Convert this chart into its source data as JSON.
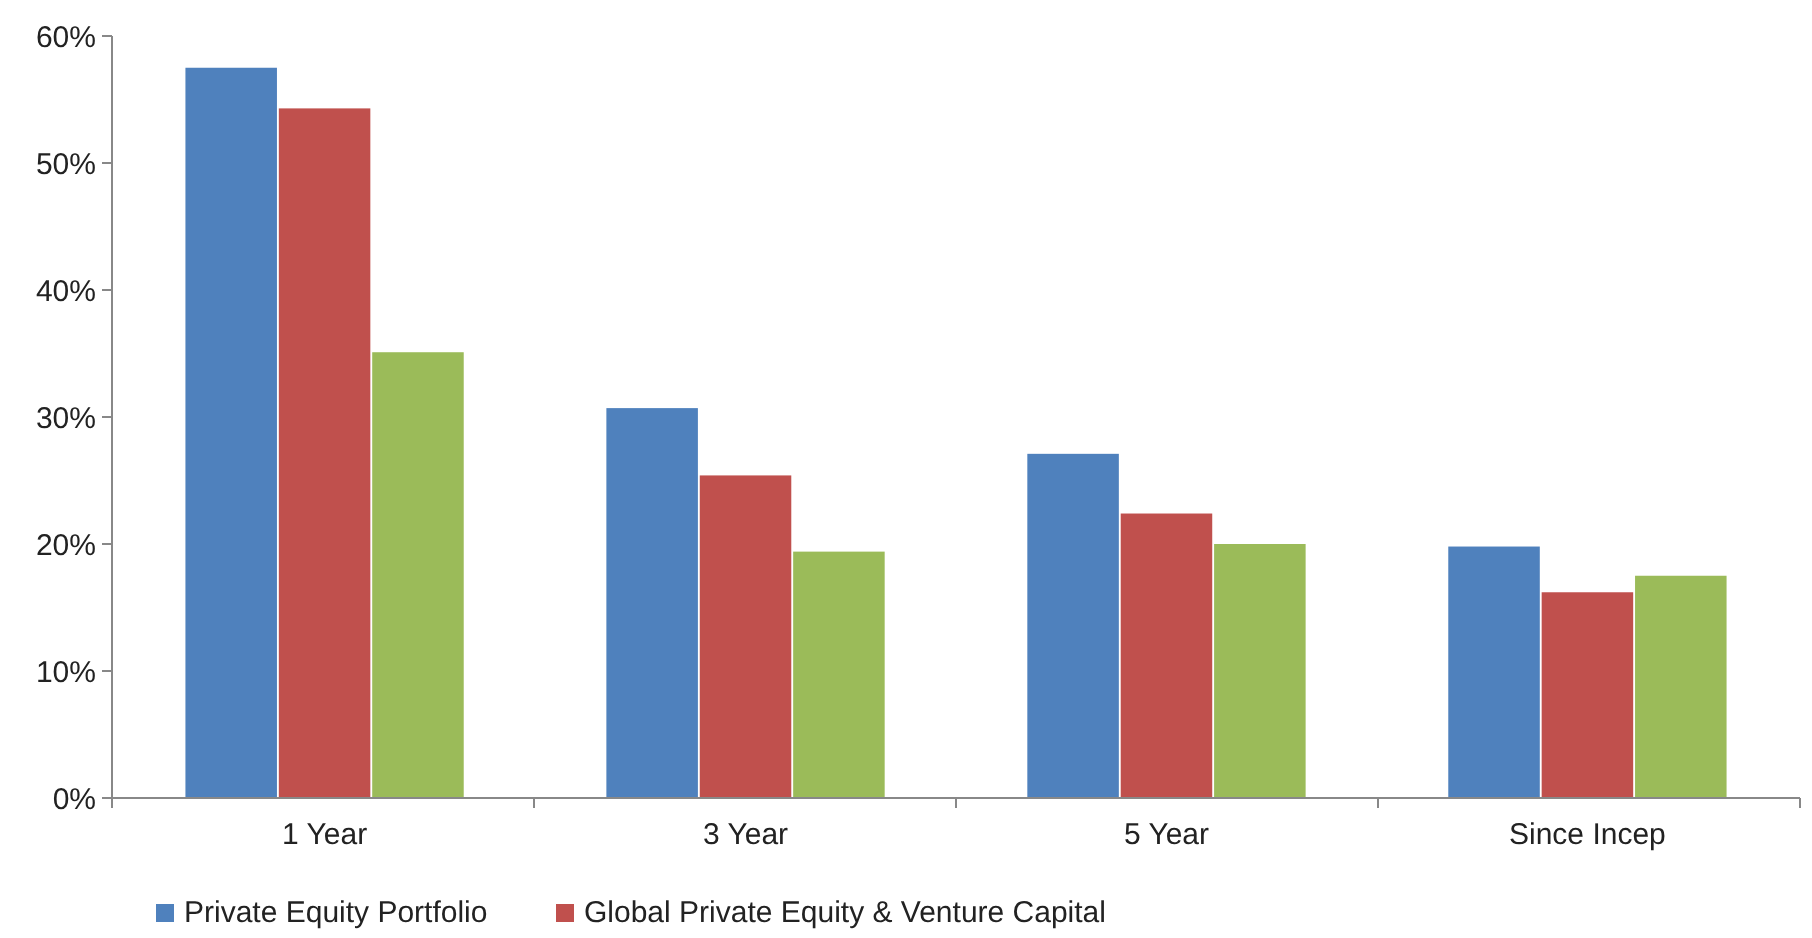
{
  "chart_data": {
    "type": "bar",
    "categories": [
      "1 Year",
      "3 Year",
      "5 Year",
      "Since Incep"
    ],
    "series": [
      {
        "name": "Private Equity Portfolio",
        "color": "#4f81bd",
        "values": [
          57.5,
          30.7,
          27.1,
          19.8
        ]
      },
      {
        "name": "Global Private Equity & Venture Capital",
        "color": "#c0504d",
        "values": [
          54.3,
          25.4,
          22.4,
          16.2
        ]
      },
      {
        "color": "#9bbb59",
        "values": [
          35.1,
          19.4,
          20.0,
          17.5
        ]
      }
    ],
    "ylim": [
      0,
      60
    ],
    "yticks": [
      {
        "value": 0,
        "label": "0%"
      },
      {
        "value": 10,
        "label": "10%"
      },
      {
        "value": 20,
        "label": "20%"
      },
      {
        "value": 30,
        "label": "30%"
      },
      {
        "value": 40,
        "label": "40%"
      },
      {
        "value": 50,
        "label": "50%"
      },
      {
        "value": 60,
        "label": "60%"
      }
    ],
    "grid": false,
    "legend": "bottom"
  }
}
